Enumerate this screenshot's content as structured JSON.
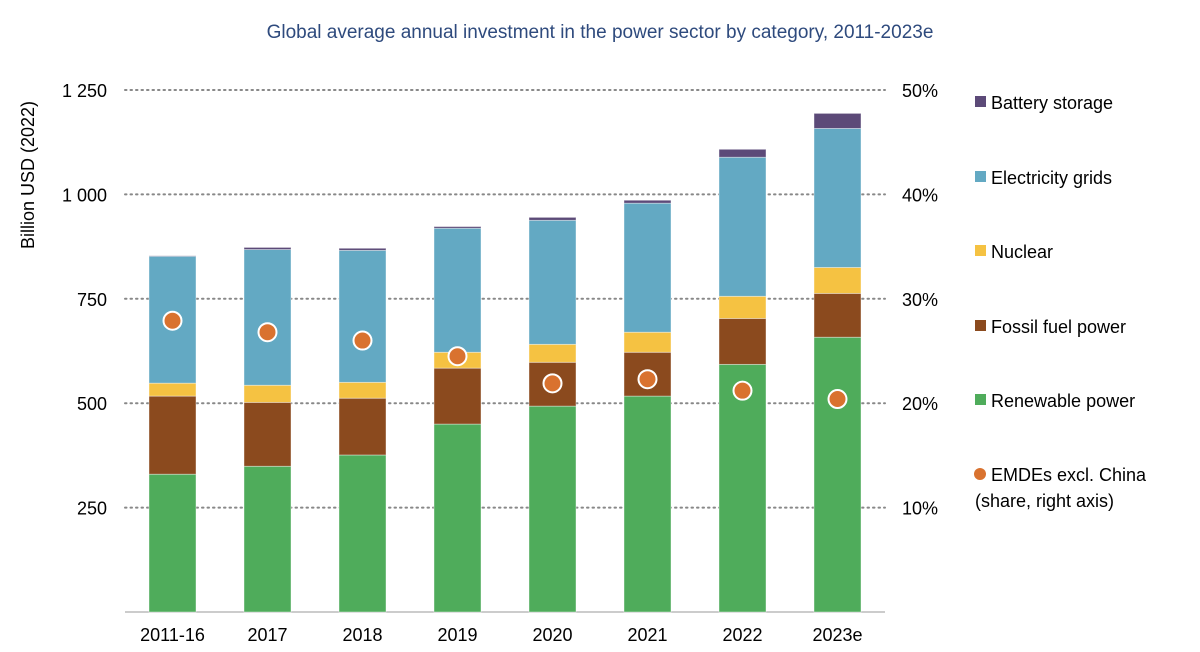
{
  "chart_data": {
    "type": "bar",
    "stacked": true,
    "title": "Global average annual investment in the power sector by category, 2011-2023e",
    "ylabel": "Billion USD (2022)",
    "ylim": [
      0,
      1250
    ],
    "yticks": [
      "250",
      "500",
      "750",
      "1 000",
      "1 250"
    ],
    "ytick_values": [
      250,
      500,
      750,
      1000,
      1250
    ],
    "y2lim": [
      0,
      50
    ],
    "y2ticks": [
      "10%",
      "20%",
      "30%",
      "40%",
      "50%"
    ],
    "y2tick_values": [
      10,
      20,
      30,
      40,
      50
    ],
    "grid": "horizontal dotted",
    "legend_position": "right",
    "categories": [
      "2011-16",
      "2017",
      "2018",
      "2019",
      "2020",
      "2021",
      "2022",
      "2023e"
    ],
    "series": [
      {
        "name": "Renewable power",
        "color": "#4fac5b",
        "values": [
          330,
          349,
          376,
          450,
          493,
          517,
          593,
          658
        ]
      },
      {
        "name": "Fossil fuel power",
        "color": "#8b4a1e",
        "values": [
          187,
          153,
          136,
          134,
          105,
          105,
          110,
          105
        ]
      },
      {
        "name": "Nuclear",
        "color": "#f5c242",
        "values": [
          31,
          41,
          38,
          38,
          43,
          48,
          53,
          62
        ]
      },
      {
        "name": "Electricity grids",
        "color": "#63a9c3",
        "values": [
          304,
          325,
          316,
          297,
          297,
          309,
          333,
          333
        ]
      },
      {
        "name": "Battery storage",
        "color": "#5c4a78",
        "values": [
          1,
          5,
          5,
          4,
          7,
          7,
          19,
          36
        ]
      }
    ],
    "points": {
      "name": "EMDEs excl. China (share, right axis)",
      "name_lines": [
        "EMDEs excl. China",
        "(share, right axis)"
      ],
      "color": "#d9722f",
      "axis": "right",
      "values": [
        27.9,
        26.8,
        26.0,
        24.5,
        21.9,
        22.3,
        21.2,
        20.4
      ]
    },
    "legend_order": [
      "Battery storage",
      "Electricity grids",
      "Nuclear",
      "Fossil fuel power",
      "Renewable power"
    ]
  }
}
